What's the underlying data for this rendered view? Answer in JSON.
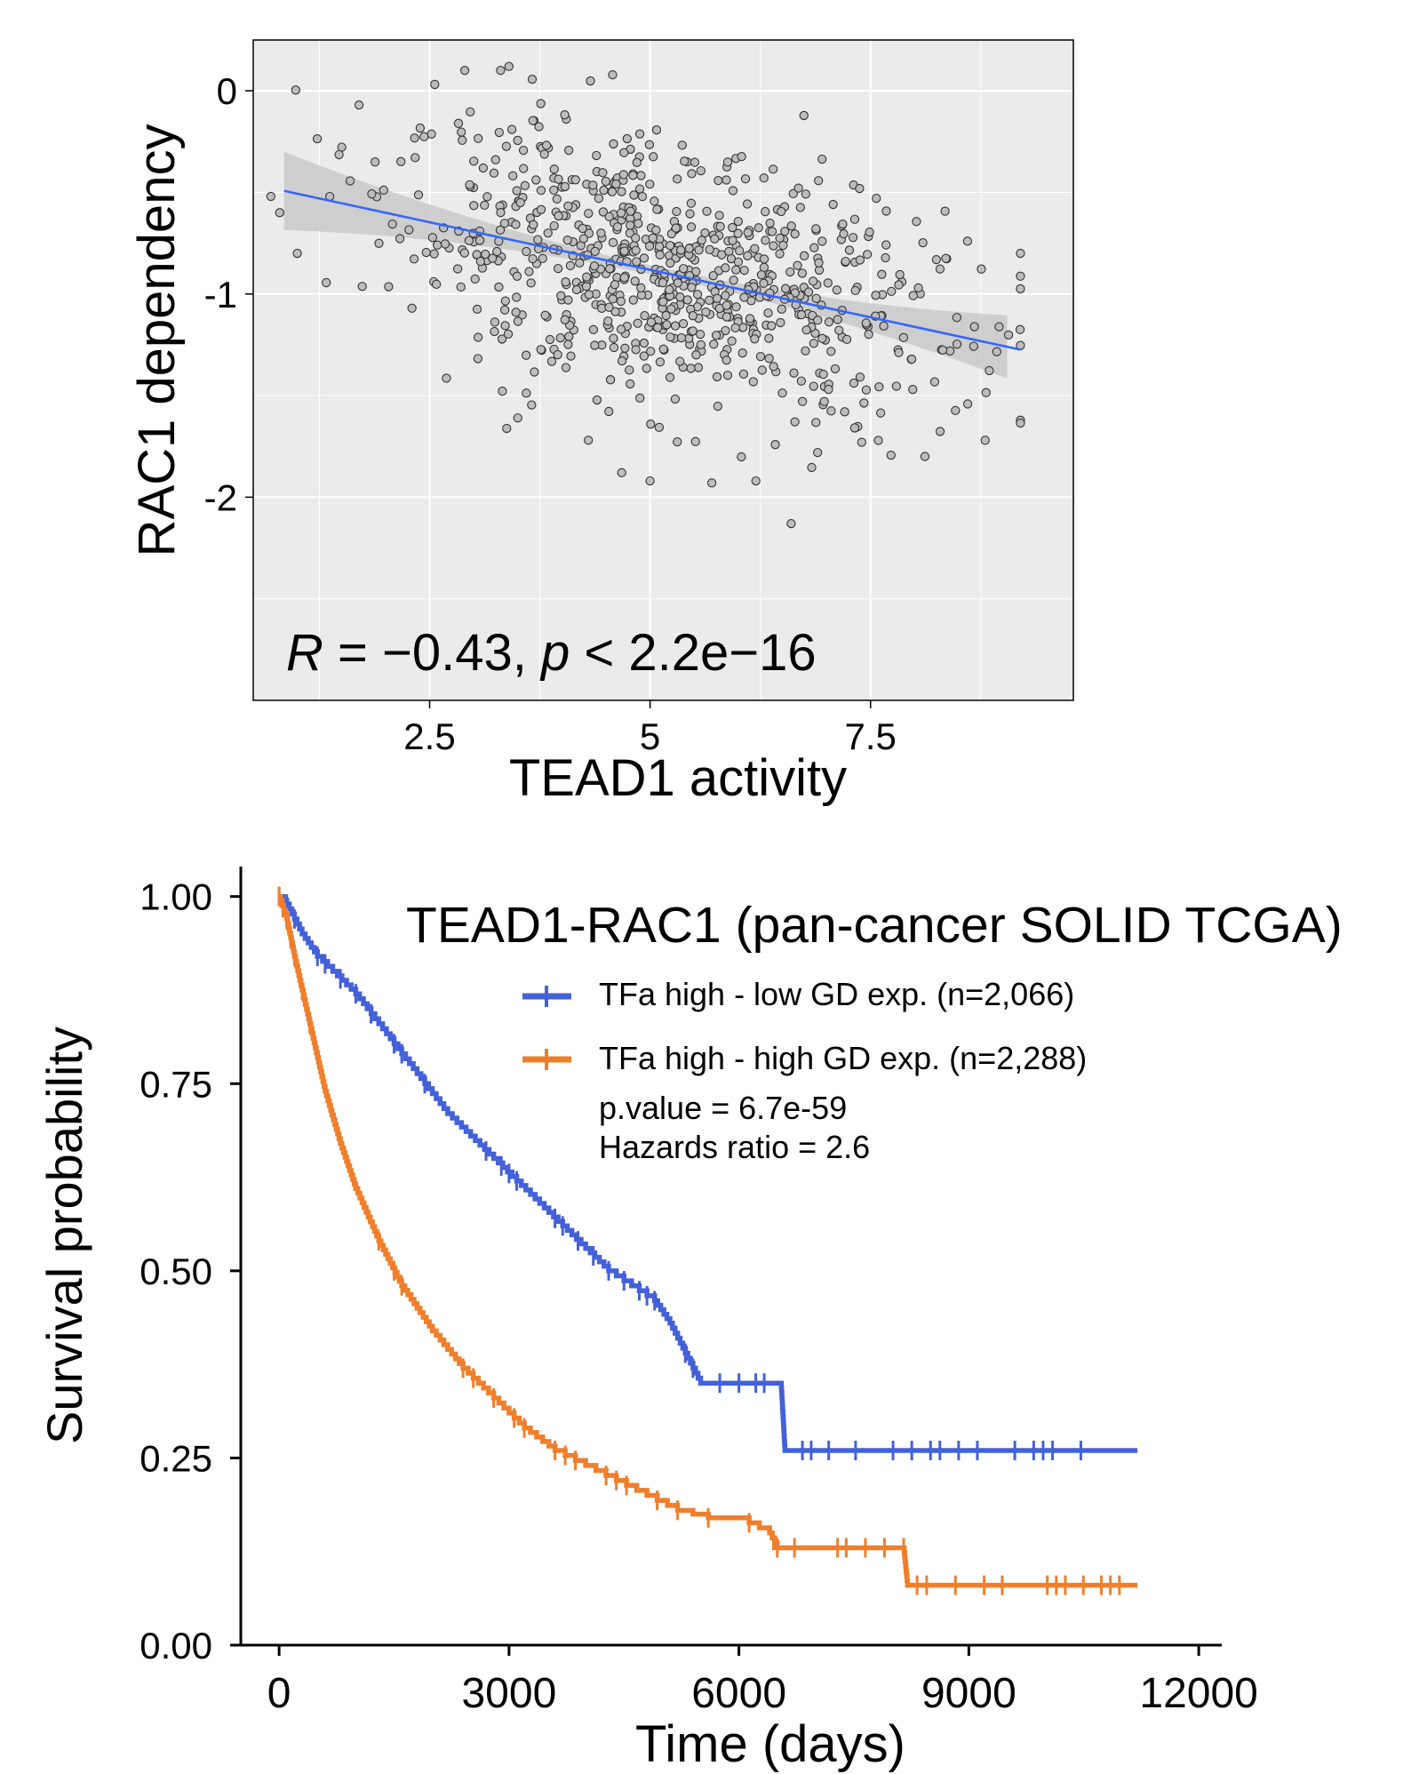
{
  "chart_data": [
    {
      "type": "scatter",
      "xlabel": "TEAD1 activity",
      "ylabel": "RAC1 dependency",
      "x_ticks": [
        "2.5",
        "5",
        "7.5"
      ],
      "y_ticks": [
        "0",
        "-1",
        "-2"
      ],
      "xlim": [
        0.5,
        9.8
      ],
      "ylim": [
        -3.0,
        0.25
      ],
      "grid": true,
      "annotation": {
        "r_symbol": "R",
        "r_text": " = −0.43, ",
        "p_symbol": "p",
        "p_text": " < 2.2e−16"
      },
      "colors": {
        "panel_bg": "#ebebeb",
        "grid": "#ffffff",
        "point_fill": "#bdbdbd",
        "point_edge": "#333333",
        "fit_line": "#3366ff",
        "ci_band": "#c4c4c4"
      },
      "regression": {
        "slope": -0.0936,
        "intercept": -0.413,
        "x_range": [
          0.85,
          9.2
        ]
      },
      "points_summary": {
        "approx_count": 800,
        "x_mean": 5.2,
        "x_sd": 1.55,
        "y_sd": 0.31,
        "x_min": 0.7,
        "x_max": 9.2,
        "y_min": -2.2,
        "y_max": 0.1
      },
      "highlighted_points": [
        [
          3.4,
          0.12
        ],
        [
          1.7,
          -0.07
        ],
        [
          6.6,
          -2.13
        ],
        [
          3.5,
          -1.61
        ],
        [
          4.3,
          -1.72
        ],
        [
          8.8,
          -1.72
        ],
        [
          9.2,
          -0.8
        ],
        [
          5.0,
          -1.92
        ],
        [
          5.7,
          -1.93
        ],
        [
          6.2,
          -1.92
        ],
        [
          6.9,
          -1.78
        ],
        [
          0.8,
          -0.6
        ],
        [
          1.0,
          -0.8
        ],
        [
          7.4,
          -1.73
        ],
        [
          8.6,
          -0.74
        ]
      ]
    },
    {
      "type": "line",
      "subtype": "kaplan-meier",
      "title": "TEAD1-RAC1 (pan-cancer SOLID TCGA)",
      "xlabel": "Time (days)",
      "ylabel": "Survival probability",
      "x_ticks": [
        "0",
        "3000",
        "6000",
        "9000",
        "12000"
      ],
      "y_ticks": [
        "1.00",
        "0.75",
        "0.50",
        "0.25",
        "0.00"
      ],
      "xlim": [
        -500,
        12300
      ],
      "ylim": [
        0.0,
        1.04
      ],
      "grid": false,
      "legend_position": "top-right",
      "series": [
        {
          "name": "TFa high - low GD exp. (n=2,066)",
          "color": "#4361d8",
          "x": [
            0,
            100,
            300,
            500,
            700,
            1000,
            1300,
            1600,
            1900,
            2200,
            2500,
            2800,
            3100,
            3400,
            3700,
            4000,
            4300,
            4600,
            4900,
            5100,
            5300,
            5500,
            6000,
            6550,
            6600,
            7400,
            9600,
            11200
          ],
          "y": [
            1.0,
            0.99,
            0.95,
            0.92,
            0.9,
            0.87,
            0.83,
            0.79,
            0.75,
            0.71,
            0.68,
            0.65,
            0.62,
            0.59,
            0.56,
            0.53,
            0.5,
            0.48,
            0.46,
            0.43,
            0.39,
            0.35,
            0.35,
            0.35,
            0.26,
            0.26,
            0.26,
            0.26
          ]
        },
        {
          "name": "TFa high - high GD exp. (n=2,288)",
          "color": "#ef7f2d",
          "x": [
            0,
            100,
            200,
            400,
            600,
            800,
            1000,
            1300,
            1600,
            2000,
            2400,
            2800,
            3200,
            3600,
            4000,
            4400,
            4800,
            5200,
            5600,
            6000,
            6400,
            6500,
            7400,
            8150,
            8200,
            9200,
            11200
          ],
          "y": [
            1.0,
            0.97,
            0.92,
            0.83,
            0.74,
            0.67,
            0.61,
            0.54,
            0.48,
            0.42,
            0.37,
            0.33,
            0.29,
            0.26,
            0.24,
            0.22,
            0.2,
            0.18,
            0.17,
            0.17,
            0.15,
            0.13,
            0.13,
            0.13,
            0.08,
            0.08,
            0.08
          ]
        }
      ],
      "annotations": [
        "p.value = 6.7e-59",
        "Hazards ratio = 2.6"
      ]
    }
  ]
}
